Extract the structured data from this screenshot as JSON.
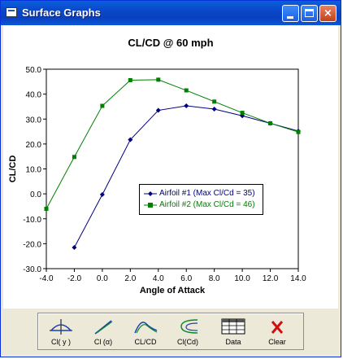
{
  "window": {
    "title": "Surface Graphs"
  },
  "title_buttons": {
    "minimize": "",
    "maximize": "",
    "close": "×"
  },
  "chart_data": {
    "type": "line",
    "title": "CL/CD @ 60 mph",
    "xlabel": "Angle of Attack",
    "ylabel": "CL/CD",
    "xlim": [
      -4.0,
      14.0
    ],
    "ylim": [
      -30.0,
      50.0
    ],
    "x_ticks": [
      "-4.0",
      "-2.0",
      "0.0",
      "2.0",
      "4.0",
      "6.0",
      "8.0",
      "10.0",
      "12.0",
      "14.0"
    ],
    "y_ticks": [
      "50.0",
      "40.0",
      "30.0",
      "20.0",
      "10.0",
      "0.0",
      "-10.0",
      "-20.0",
      "-30.0"
    ],
    "grid": false,
    "legend_position": "center-right",
    "series": [
      {
        "name": "Airfoil #1 (Max Cl/Cd = 35)",
        "color": "#000080",
        "marker": "diamond",
        "x": [
          -2,
          0,
          2,
          4,
          6,
          8,
          10,
          12,
          14
        ],
        "y": [
          -21.5,
          -0.3,
          21.7,
          33.5,
          35.3,
          34.0,
          31.3,
          28.3,
          25.2
        ]
      },
      {
        "name": "Airfoil #2 (Max Cl/Cd = 46)",
        "color": "#008000",
        "marker": "square",
        "x": [
          -4,
          -2,
          0,
          2,
          4,
          6,
          8,
          10,
          12,
          14
        ],
        "y": [
          -6.0,
          14.8,
          35.3,
          45.6,
          45.8,
          41.5,
          37.0,
          32.5,
          28.3,
          24.8
        ]
      }
    ]
  },
  "toolbar": {
    "items": [
      {
        "label": "Cl( y )",
        "icon": "cl-y-icon"
      },
      {
        "label": "Cl (α)",
        "icon": "cl-alpha-icon"
      },
      {
        "label": "CL/CD",
        "icon": "cl-cd-icon"
      },
      {
        "label": "Cl(Cd)",
        "icon": "cl-of-cd-icon"
      },
      {
        "label": "Data",
        "icon": "data-table-icon"
      },
      {
        "label": "Clear",
        "icon": "clear-x-icon"
      }
    ]
  }
}
